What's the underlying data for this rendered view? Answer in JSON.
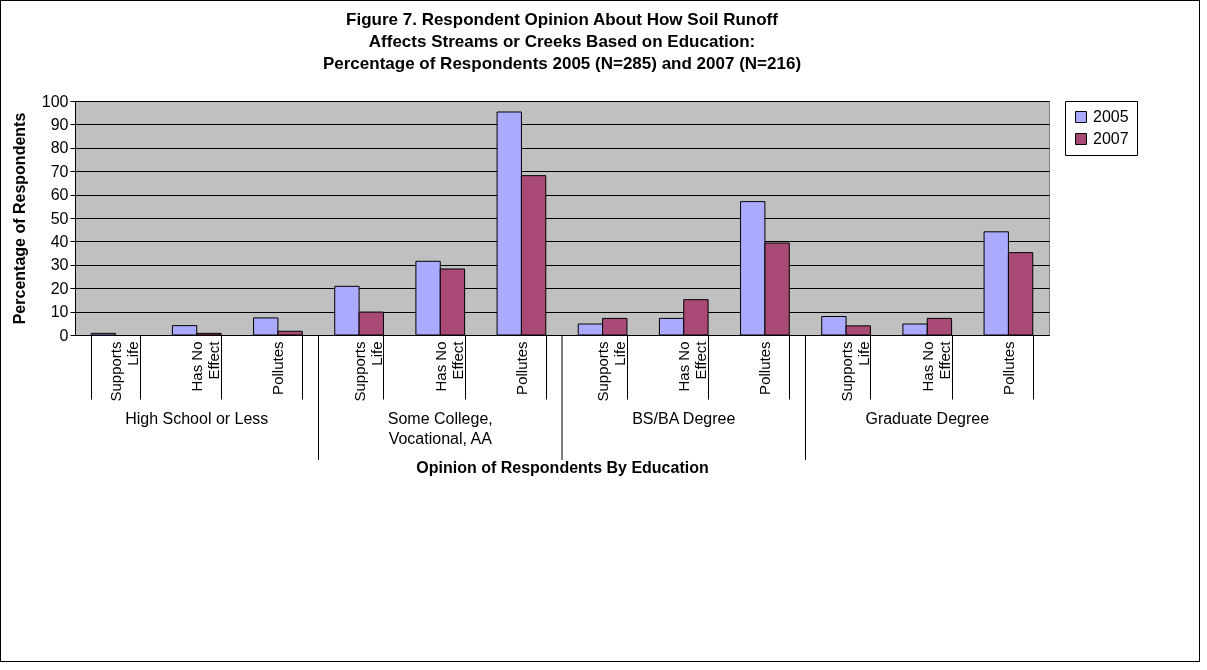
{
  "chart_data": {
    "type": "bar",
    "title": "Figure 7.  Respondent Opinion About How Soil Runoff Affects Streams or Creeks Based on Education: Percentage of Respondents 2005 (N=285) and 2007 (N=216)",
    "xlabel": "Opinion of Respondents By Education",
    "ylabel": "Percentage of Respondents",
    "categories": [
      "Supports Life",
      "Has No Effect",
      "Pollutes",
      "Supports Life",
      "Has No Effect",
      "Pollutes",
      "Supports Life",
      "Has No Effect",
      "Pollutes",
      "Supports Life",
      "Has No Effect",
      "Pollutes"
    ],
    "annotations": [
      "High School or Less",
      "Some College, Vocational, AA",
      "BS/BA Degree",
      "Graduate Degree"
    ],
    "series": [
      {
        "name": "2005",
        "color": "#aaaaff",
        "values": [
          0.7,
          4,
          7.3,
          20.8,
          31.5,
          95.3,
          4.7,
          7.1,
          57,
          7.9,
          4.7,
          44.1
        ]
      },
      {
        "name": "2007",
        "color": "#a94976",
        "values": [
          null,
          0.7,
          1.6,
          9.8,
          28.2,
          68.1,
          7.1,
          15.1,
          39.3,
          3.9,
          7.1,
          35.2
        ]
      }
    ],
    "ylim": [
      0,
      100
    ],
    "yticks": [
      0,
      10,
      20,
      30,
      40,
      50,
      60,
      70,
      80,
      90,
      100
    ],
    "grid": "y",
    "legend": "right"
  }
}
